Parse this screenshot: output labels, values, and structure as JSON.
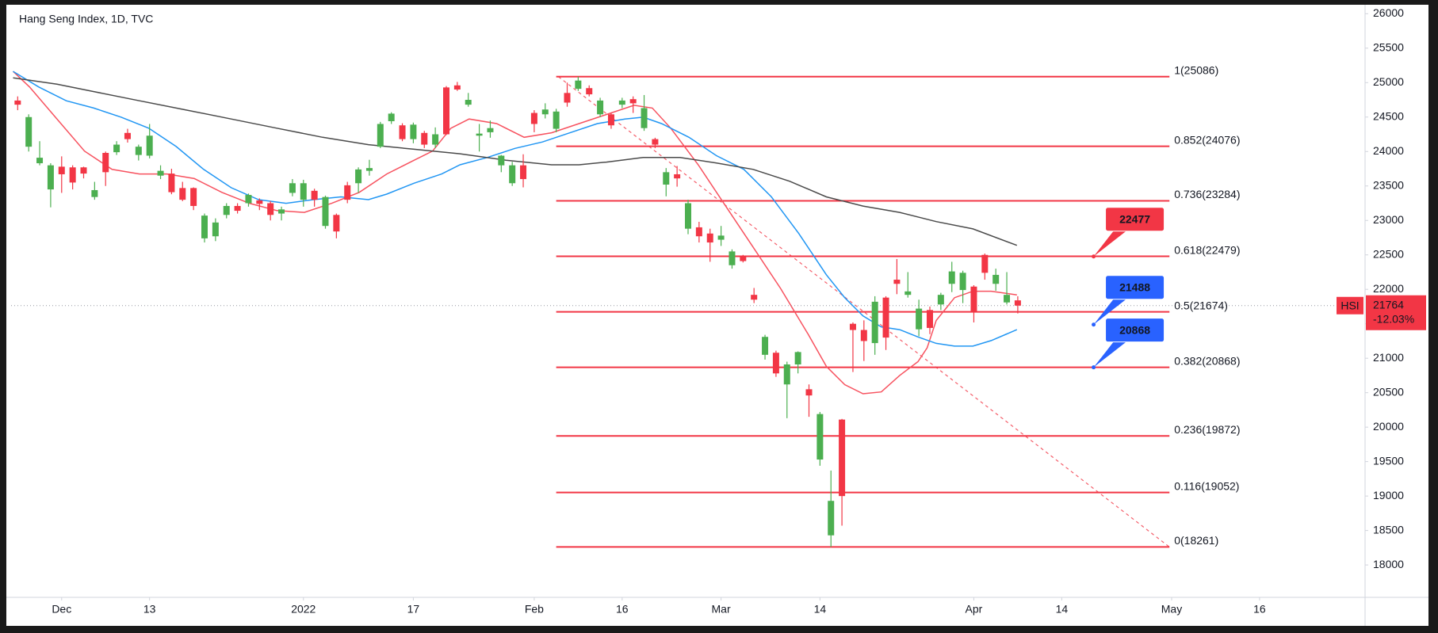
{
  "chart_data": {
    "type": "candlestick",
    "title": "Hang Seng Index, 1D, TVC",
    "xlim": [
      -0.6,
      122.6
    ],
    "xticks": [
      {
        "value": 4,
        "label": "Dec"
      },
      {
        "value": 12,
        "label": "13"
      },
      {
        "value": 26,
        "label": "2022"
      },
      {
        "value": 36,
        "label": "17"
      },
      {
        "value": 47,
        "label": "Feb"
      },
      {
        "value": 55,
        "label": "16"
      },
      {
        "value": 64,
        "label": "Mar"
      },
      {
        "value": 73,
        "label": "14"
      },
      {
        "value": 87,
        "label": "Apr"
      },
      {
        "value": 95,
        "label": "14"
      },
      {
        "value": 105,
        "label": "May"
      },
      {
        "value": 113,
        "label": "16"
      }
    ],
    "ylim": [
      17530,
      26130
    ],
    "yticks": [
      18000,
      18500,
      19000,
      19500,
      20000,
      20500,
      21000,
      21500,
      22000,
      22500,
      23000,
      23500,
      24000,
      24500,
      25000,
      25500,
      26000
    ],
    "up_color": "#4caf50",
    "down_color": "#f23645",
    "candles": {
      "x": [
        0,
        1,
        2,
        3,
        4,
        5,
        6,
        7,
        8,
        9,
        10,
        11,
        12,
        13,
        14,
        15,
        16,
        17,
        18,
        19,
        20,
        21,
        22,
        23,
        24,
        25,
        26,
        27,
        28,
        29,
        30,
        31,
        32,
        33,
        34,
        35,
        36,
        37,
        38,
        39,
        40,
        41,
        42,
        43,
        44,
        45,
        46,
        47,
        48,
        49,
        50,
        51,
        52,
        53,
        54,
        55,
        56,
        57,
        58,
        59,
        60,
        61,
        62,
        63,
        64,
        65,
        66,
        67,
        68,
        69,
        70,
        71,
        72,
        73,
        74,
        75,
        76,
        77,
        78,
        79,
        80,
        81,
        82,
        83,
        84,
        85,
        86,
        87,
        88,
        89,
        90,
        91
      ],
      "open": [
        24740,
        24070,
        23830,
        23450,
        23780,
        23770,
        23770,
        23340,
        23980,
        23990,
        24270,
        23950,
        23940,
        23650,
        23680,
        23470,
        23470,
        22740,
        22770,
        23080,
        23210,
        23250,
        23290,
        23250,
        23100,
        23400,
        23300,
        23430,
        22920,
        23080,
        23510,
        23540,
        23720,
        24070,
        24440,
        24380,
        24180,
        24270,
        24100,
        24930,
        24960,
        24680,
        24230,
        24280,
        23800,
        23540,
        23800,
        24560,
        24540,
        24330,
        24850,
        24910,
        24920,
        24540,
        24540,
        24680,
        24760,
        24340,
        24180,
        23520,
        23670,
        22880,
        22900,
        22810,
        22720,
        22350,
        22480,
        21920,
        21050,
        21080,
        20620,
        20910,
        20550,
        19530,
        18430,
        20110,
        21500,
        21410,
        21220,
        21880,
        22140,
        21920,
        21420,
        21700,
        21780,
        22080,
        21990,
        22040,
        22500,
        22080,
        21810,
        21840
      ],
      "high": [
        24800,
        24540,
        24150,
        23830,
        23930,
        23800,
        23780,
        23560,
        24000,
        24150,
        24330,
        24100,
        24400,
        23800,
        23750,
        23560,
        23480,
        23100,
        23030,
        23250,
        23250,
        23390,
        23320,
        23280,
        23200,
        23600,
        23590,
        23460,
        23360,
        23100,
        23560,
        23770,
        23880,
        24430,
        24570,
        24410,
        24420,
        24300,
        24350,
        24950,
        25010,
        24850,
        24400,
        24450,
        23950,
        23850,
        23960,
        24600,
        24700,
        24620,
        25000,
        25086,
        24960,
        24780,
        24560,
        24780,
        24800,
        24820,
        24200,
        23760,
        23790,
        23300,
        22980,
        22880,
        22920,
        22580,
        22500,
        22020,
        21340,
        21110,
        20950,
        21100,
        20620,
        20220,
        19370,
        20120,
        21520,
        21550,
        21900,
        21900,
        22440,
        22250,
        21850,
        21750,
        21950,
        22400,
        22270,
        22060,
        22520,
        22300,
        22250,
        21900
      ],
      "low": [
        24600,
        24000,
        23800,
        23190,
        23400,
        23450,
        23610,
        23300,
        23500,
        23950,
        24130,
        23870,
        23900,
        23600,
        23380,
        23280,
        23150,
        22680,
        22700,
        23030,
        23100,
        23200,
        23150,
        23000,
        23000,
        23350,
        23200,
        23200,
        22880,
        22740,
        23250,
        23400,
        23650,
        24050,
        24400,
        24150,
        24120,
        24050,
        24050,
        24240,
        24880,
        24650,
        24000,
        24200,
        23700,
        23500,
        23480,
        24280,
        24480,
        24280,
        24650,
        24880,
        24800,
        24500,
        24330,
        24630,
        24560,
        24300,
        24050,
        23350,
        23490,
        22800,
        22680,
        22400,
        22630,
        22300,
        22390,
        21800,
        20980,
        20730,
        20130,
        20780,
        20150,
        19440,
        18261,
        18570,
        20800,
        20960,
        21050,
        21120,
        21930,
        21880,
        21320,
        21350,
        21700,
        21960,
        21800,
        21520,
        22140,
        21980,
        21780,
        21650
      ],
      "close": [
        24680,
        24500,
        23910,
        23800,
        23670,
        23550,
        23680,
        23440,
        23700,
        24100,
        24180,
        24070,
        24230,
        23720,
        23410,
        23300,
        23210,
        23070,
        22970,
        23210,
        23140,
        23370,
        23240,
        23080,
        23160,
        23540,
        23540,
        23300,
        23340,
        22840,
        23300,
        23740,
        23760,
        24400,
        24550,
        24180,
        24390,
        24100,
        24250,
        24250,
        24900,
        24750,
        24260,
        24340,
        23940,
        23800,
        23600,
        24400,
        24610,
        24580,
        24710,
        25030,
        24830,
        24740,
        24380,
        24740,
        24700,
        24630,
        24100,
        23700,
        23610,
        23250,
        22770,
        22680,
        22780,
        22550,
        22410,
        21850,
        21310,
        20780,
        20910,
        21090,
        20460,
        20190,
        18930,
        19000,
        21410,
        21250,
        21820,
        21300,
        22080,
        21970,
        21720,
        21440,
        21920,
        22260,
        22240,
        21680,
        22240,
        22210,
        21920,
        21764
      ]
    },
    "series": [
      {
        "color": "#f7525f",
        "x": [
          -0.42,
          1.08,
          3.58,
          6.08,
          8.58,
          11.08,
          13.58,
          16.08,
          18.58,
          21.08,
          23.58,
          26.08,
          28.58,
          31.08,
          33.58,
          36.08,
          37.75,
          39.42,
          41.08,
          43.58,
          46.08,
          48.58,
          51.08,
          53.58,
          56.08,
          57.75,
          59.42,
          61.92,
          64.42,
          66.92,
          69.42,
          71.92,
          73.58,
          75.25,
          76.92,
          78.58,
          80.25,
          81.92,
          82.75,
          83.58,
          85.25,
          86.92,
          88.58,
          90.92
        ],
        "values": [
          25163,
          24937,
          24472,
          24006,
          23741,
          23674,
          23674,
          23608,
          23408,
          23249,
          23143,
          23116,
          23249,
          23408,
          23674,
          23874,
          24006,
          24339,
          24472,
          24405,
          24206,
          24272,
          24405,
          24538,
          24671,
          24631,
          24339,
          23807,
          23209,
          22611,
          22013,
          21349,
          20883,
          20617,
          20485,
          20511,
          20750,
          20950,
          21149,
          21548,
          21880,
          21973,
          21973,
          21920
        ]
      },
      {
        "color": "#2196f3",
        "x": [
          -0.42,
          1.92,
          4.42,
          6.92,
          9.42,
          11.92,
          14.42,
          16.92,
          19.42,
          21.92,
          24.42,
          26.92,
          29.42,
          31.92,
          33.58,
          36.08,
          38.58,
          40.25,
          42.75,
          45.25,
          47.75,
          50.25,
          52.75,
          55.25,
          56.92,
          58.58,
          61.08,
          63.58,
          66.08,
          68.58,
          71.08,
          73.58,
          75.25,
          76.92,
          78.58,
          80.25,
          81.92,
          83.58,
          85.25,
          86.92,
          88.58,
          90.92
        ],
        "values": [
          25163,
          24937,
          24737,
          24631,
          24498,
          24339,
          24073,
          23741,
          23475,
          23302,
          23249,
          23302,
          23342,
          23302,
          23382,
          23541,
          23674,
          23807,
          23914,
          24046,
          24139,
          24272,
          24405,
          24472,
          24498,
          24405,
          24206,
          23940,
          23741,
          23342,
          22810,
          22212,
          21880,
          21614,
          21455,
          21415,
          21309,
          21216,
          21176,
          21176,
          21256,
          21415
        ]
      },
      {
        "color": "#4a4a4a",
        "x": [
          -0.42,
          3.58,
          6.92,
          11.08,
          15.25,
          19.42,
          23.58,
          27.75,
          31.92,
          36.08,
          40.25,
          44.42,
          48.58,
          51.08,
          53.58,
          56.92,
          60.25,
          63.58,
          66.92,
          70.25,
          73.58,
          76.92,
          80.25,
          83.58,
          86.92,
          90.92
        ],
        "values": [
          25070,
          24977,
          24870,
          24737,
          24605,
          24472,
          24339,
          24206,
          24100,
          24033,
          23967,
          23874,
          23807,
          23807,
          23847,
          23914,
          23914,
          23834,
          23741,
          23568,
          23342,
          23209,
          23116,
          22983,
          22877,
          22638
        ]
      }
    ],
    "fib": {
      "color": "#f23645",
      "x_range": [
        49,
        104.8
      ],
      "levels": [
        {
          "value": 25086,
          "label": "1(25086)"
        },
        {
          "value": 24076,
          "label": "0.852(24076)"
        },
        {
          "value": 23284,
          "label": "0.736(23284)"
        },
        {
          "value": 22479,
          "label": "0.618(22479)"
        },
        {
          "value": 21674,
          "label": "0.5(21674)"
        },
        {
          "value": 20868,
          "label": "0.382(20868)"
        },
        {
          "value": 19872,
          "label": "0.236(19872)"
        },
        {
          "value": 19052,
          "label": "0.116(19052)"
        },
        {
          "value": 18261,
          "label": "0(18261)"
        }
      ]
    },
    "trendline": {
      "color": "#f23645",
      "x": [
        49.2,
        104.8
      ],
      "values": [
        25086,
        18261
      ]
    },
    "callouts": [
      {
        "x": 97.9,
        "value": 22477,
        "color": "#f23645"
      },
      {
        "x": 97.9,
        "value": 21488,
        "color": "#2962ff"
      },
      {
        "x": 97.9,
        "value": 20868,
        "color": "#2962ff"
      }
    ],
    "last": {
      "symbol": "HSI",
      "value": 21764,
      "change": {
        "value": -12.03,
        "label": "-12.03%"
      },
      "up_color": "#4caf50",
      "down_color": "#f23645"
    }
  }
}
